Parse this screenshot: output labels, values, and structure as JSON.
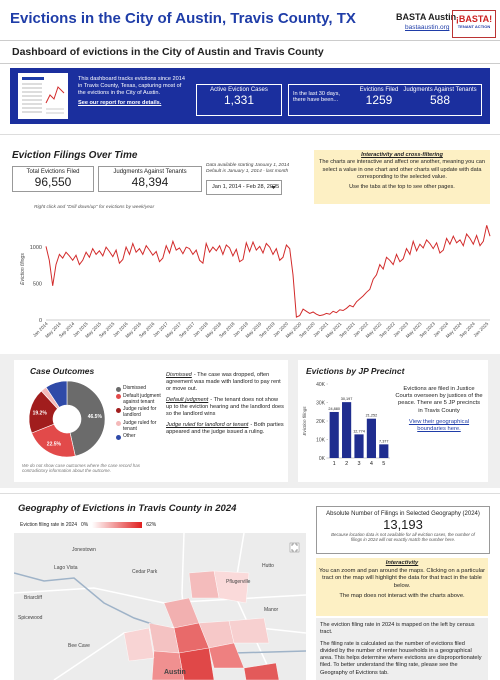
{
  "header": {
    "title": "Evictions in the City of Austin, Travis County, TX",
    "org": "BASTA Austin",
    "url": "bastaaustin.org",
    "logo_title": "¡BASTA!",
    "logo_subtitle": "TENANT ACTION",
    "subtitle": "Dashboard of evictions in the City of Austin and Travis County"
  },
  "banner": {
    "text": "This dashboard tracks evictions since 2014 in Travis County, Texas, capturing most of the evictions in the City of Austin.",
    "link": "See our report for more details.",
    "active_label": "Active Eviction Cases",
    "active_value": "1,331",
    "recent_text": "In the last 30 days, there have been...",
    "filed_label": "Evictions Filed",
    "filed_value": "1259",
    "judgments_label": "Judgments Against Tenants",
    "judgments_value": "588"
  },
  "filings": {
    "total_label": "Total Evictions Filed",
    "total_value": "96,550",
    "judgments_label": "Judgments Against Tenants",
    "judgments_value": "48,394",
    "note_1": "Data available starting January 1, 2014",
    "note_2": "Default is January 1, 2014 - last month",
    "date_range": "Jan 1, 2014 - Feb 28, 2025",
    "hint": "Right click and \"Drill down/up\" for evictions by week/year"
  },
  "info": {
    "title": "Interactivity and cross-filtering",
    "text": "The charts are interactive and affect one another, meaning you can select a value in one chart and other charts will update with data corresponding to the selected value.",
    "text_2": "Use the tabs at the top to see other pages."
  },
  "outcomes": {
    "definitions": [
      {
        "term": "Dismissed",
        "text": "- The case was dropped, often agreement was made with landlord to pay rent or move out."
      },
      {
        "term": "Default judgment",
        "text": "- The tenant does not show up to the eviction hearing and the landlord does so the landlord wins"
      },
      {
        "term": "Judge ruled for landlord or tenant",
        "text": "- Both parties appeared and the judge issued a ruling."
      }
    ],
    "note": "We do not show case outcomes where the case record has contradictory information about the outcome."
  },
  "precincts": {
    "text": "Evictions are filed in Justice Courts overseen by justices of the peace. There are 5 JP precincts in Travis County",
    "link": "View their geographical boundaries here."
  },
  "geography": {
    "title": "Geography of Evictions in Travis County in 2024",
    "legend_label": "Eviction filing rate in 2024",
    "legend_min": "0%",
    "legend_max": "62%",
    "count_label": "Absolute Number of Filings in Selected Geography (2024)",
    "count_value": "13,193",
    "count_note": "Because location data is not available for all eviction cases, the number of filings in 2024 will not exactly match the number here.",
    "interactivity_title": "Interactivity",
    "interactivity_text": "You can zoom and pan around the maps. Clicking on a particular tract on the map will highlight the data for that tract in the table below.",
    "interactivity_text_2": "The map does not interact with the charts above.",
    "explain_1": "The eviction filing rate in 2024 is mapped on the left by census tract.",
    "explain_2": "The filing rate is calculated as the number of evictions filed divided by the number of renter households in a geographical area. This helps determine where evictions are disproportionately filed. To better understand the filing rate, please see the Geography of Evictions tab.",
    "places": [
      "Jonestown",
      "Hutto",
      "Lago Vista",
      "Cedar Park",
      "Pflugerville",
      "Briarcliff",
      "Manor",
      "Spicewood",
      "Bee Cave",
      "Austin"
    ]
  },
  "chart_data": [
    {
      "type": "line",
      "title": "Eviction Filings Over Time",
      "y_label": "Eviction filings",
      "color": "#d22b2b",
      "grid": false,
      "ylim": [
        0,
        1400
      ],
      "yticks": [
        0,
        500,
        1000
      ],
      "x": [
        "Jan 2014",
        null,
        null,
        null,
        "May 2014",
        null,
        null,
        null,
        "Sep 2014",
        null,
        null,
        null,
        "Jan 2015",
        null,
        null,
        null,
        "May 2015",
        null,
        null,
        null,
        "Sep 2015",
        null,
        null,
        null,
        "Jan 2016",
        null,
        null,
        null,
        "May 2016",
        null,
        null,
        null,
        "Sep 2016",
        null,
        null,
        null,
        "Jan 2017",
        null,
        null,
        null,
        "May 2017",
        null,
        null,
        null,
        "Sep 2017",
        null,
        null,
        null,
        "Jan 2018",
        null,
        null,
        null,
        "May 2018",
        null,
        null,
        null,
        "Sep 2018",
        null,
        null,
        null,
        "Jan 2019",
        null,
        null,
        null,
        "May 2019",
        null,
        null,
        null,
        "Sep 2019",
        null,
        null,
        null,
        "Jan 2020",
        null,
        null,
        null,
        "May 2020",
        null,
        null,
        null,
        "Sep 2020",
        null,
        null,
        null,
        "Jan 2021",
        null,
        null,
        null,
        "May 2021",
        null,
        null,
        null,
        "Sep 2021",
        null,
        null,
        null,
        "Jan 2022",
        null,
        null,
        null,
        "May 2022",
        null,
        null,
        null,
        "Sep 2022",
        null,
        null,
        null,
        "Jan 2023",
        null,
        null,
        null,
        "May 2023",
        null,
        null,
        null,
        "Sep 2023",
        null,
        null,
        null,
        "Jan 2024",
        null,
        null,
        null,
        "May 2024",
        null,
        null,
        null,
        "Sep 2024",
        null,
        null,
        null,
        "Jan 2025",
        null
      ],
      "values": [
        1010,
        820,
        470,
        760,
        900,
        850,
        930,
        880,
        820,
        890,
        760,
        820,
        930,
        860,
        980,
        900,
        950,
        880,
        1000,
        940,
        870,
        960,
        780,
        830,
        1000,
        900,
        1050,
        930,
        980,
        900,
        1020,
        960,
        890,
        940,
        800,
        850,
        1020,
        920,
        1080,
        960,
        990,
        910,
        1000,
        980,
        900,
        960,
        820,
        780,
        1050,
        930,
        1000,
        950,
        1020,
        900,
        1030,
        990,
        880,
        970,
        800,
        830,
        1060,
        940,
        1070,
        960,
        1010,
        920,
        1050,
        1000,
        900,
        980,
        820,
        860,
        1030,
        980,
        620,
        40,
        60,
        150,
        120,
        90,
        110,
        80,
        60,
        70,
        90,
        80,
        120,
        100,
        140,
        130,
        160,
        200,
        180,
        250,
        290,
        330,
        380,
        420,
        560,
        620,
        760,
        700,
        860,
        820,
        760,
        900,
        800,
        840,
        980,
        900,
        1080,
        950,
        1040,
        990,
        1100,
        1050,
        980,
        1060,
        920,
        960,
        1120,
        1040,
        1150,
        1060,
        1100,
        1020,
        1180,
        1120,
        1040,
        1160,
        1020,
        1080,
        1300,
        1150
      ]
    },
    {
      "type": "pie",
      "title": "Case Outcomes",
      "categories": [
        "Dismissed",
        "Default judgment against tenant",
        "Judge ruled for landlord",
        "Judge ruled for tenant",
        "Other"
      ],
      "values": [
        46.5,
        22.5,
        19.2,
        2.5,
        9.3
      ],
      "value_labels": [
        "46.5%",
        "22.5%",
        "19.2%",
        null,
        null
      ],
      "colors": [
        "#6b6b6b",
        "#e24a4a",
        "#a11d1d",
        "#f4b9b9",
        "#2f4aa8"
      ]
    },
    {
      "type": "bar",
      "title": "Evictions by JP Precinct",
      "y_label": "Eviction filings",
      "color": "#1f2d8f",
      "categories": [
        "1",
        "2",
        "3",
        "4",
        "5"
      ],
      "values": [
        24880,
        30197,
        12774,
        21252,
        7377
      ],
      "value_labels": [
        "24,880",
        "30,197",
        "12,774",
        "21,252",
        "7,377"
      ],
      "ylim": [
        0,
        40000
      ],
      "yticks": [
        {
          "value": 0,
          "label": "0K"
        },
        {
          "value": 10000,
          "label": "10K"
        },
        {
          "value": 20000,
          "label": "20K"
        },
        {
          "value": 30000,
          "label": "30K"
        },
        {
          "value": 40000,
          "label": "40K"
        }
      ]
    }
  ]
}
